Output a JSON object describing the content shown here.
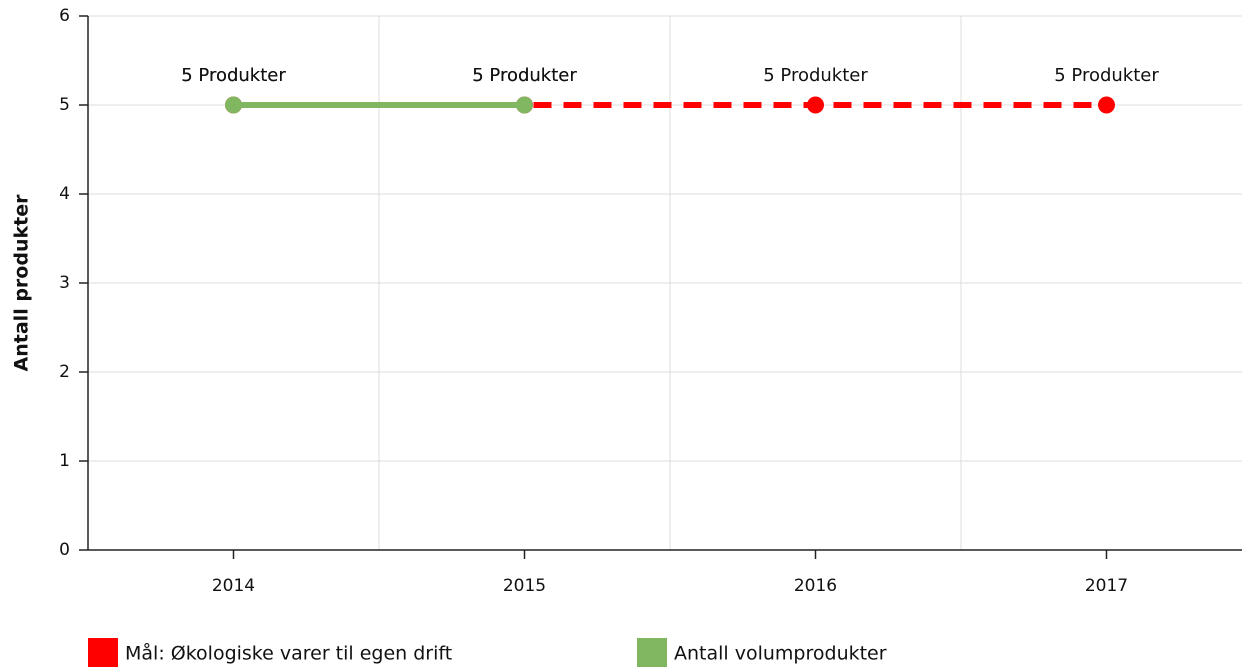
{
  "chart_data": {
    "type": "line",
    "y_label": "Antall produkter",
    "categories": [
      "2014",
      "2015",
      "2016",
      "2017"
    ],
    "series": [
      {
        "name": "Mål: Økologiske varer til egen drift",
        "color": "#ff0000",
        "dashed": true,
        "values": [
          5,
          5,
          5,
          5
        ],
        "value_labels": [
          "5 Produkter",
          "5 Produkter",
          "5 Produkter",
          "5 Produkter"
        ]
      },
      {
        "name": "Antall volumprodukter",
        "color": "#82b762",
        "dashed": false,
        "values": [
          5,
          5,
          null,
          null
        ],
        "value_labels": [
          "5 Produkter",
          "5 Produkter",
          null,
          null
        ]
      }
    ],
    "ylim": [
      0,
      6
    ],
    "yticks": [
      0,
      1,
      2,
      3,
      4,
      5,
      6
    ],
    "grid": true
  }
}
